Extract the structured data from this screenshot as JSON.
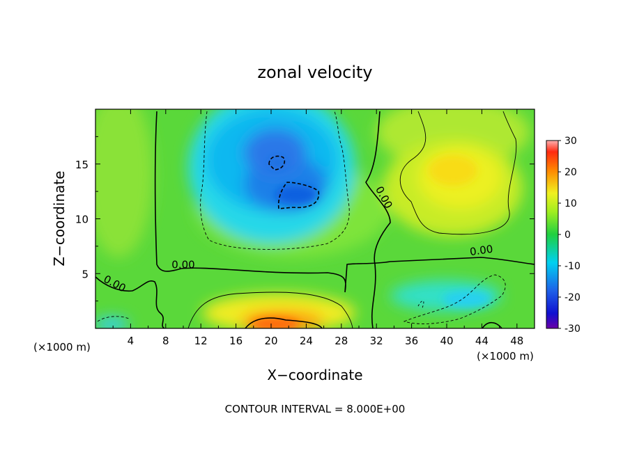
{
  "chart_data": {
    "type": "heatmap",
    "title": "zonal velocity",
    "xlabel": "X−coordinate",
    "ylabel": "Z−coordinate",
    "x_unit_note": "(×1000 m)",
    "z_unit_note": "(×1000 m)",
    "footer": "CONTOUR INTERVAL = 8.000E+00",
    "xlim": [
      0,
      50
    ],
    "ylim": [
      0,
      20
    ],
    "x_ticks": [
      4,
      8,
      12,
      16,
      20,
      24,
      28,
      32,
      36,
      40,
      44,
      48
    ],
    "y_ticks": [
      5,
      10,
      15
    ],
    "colorbar": {
      "ticks": [
        30,
        20,
        10,
        0,
        -10,
        -20,
        -30
      ],
      "range": [
        -30,
        30
      ]
    },
    "contour_interval": 8.0,
    "contour_labels": [
      {
        "text": "0.00",
        "x": 2.0,
        "z": 3.8
      },
      {
        "text": "0.00",
        "x": 10.0,
        "z": 5.5
      },
      {
        "text": "0.00",
        "x": 32.5,
        "z": 11.8
      },
      {
        "text": "0.00",
        "x": 44.0,
        "z": 6.8
      }
    ],
    "field_features": [
      {
        "kind": "min",
        "x": 21.5,
        "z": 12.5,
        "value": -16
      },
      {
        "kind": "min",
        "x": 21.0,
        "z": 15.2,
        "value": -15
      },
      {
        "kind": "max",
        "x": 22.0,
        "z": 0.5,
        "value": 16
      },
      {
        "kind": "max",
        "x": 42.0,
        "z": 13.5,
        "value": 10
      },
      {
        "kind": "min",
        "x": 42.0,
        "z": 2.5,
        "value": -8
      },
      {
        "kind": "min",
        "x": 1.0,
        "z": 0.5,
        "value": -8
      }
    ],
    "grid": false,
    "legend": "right colorbar"
  }
}
